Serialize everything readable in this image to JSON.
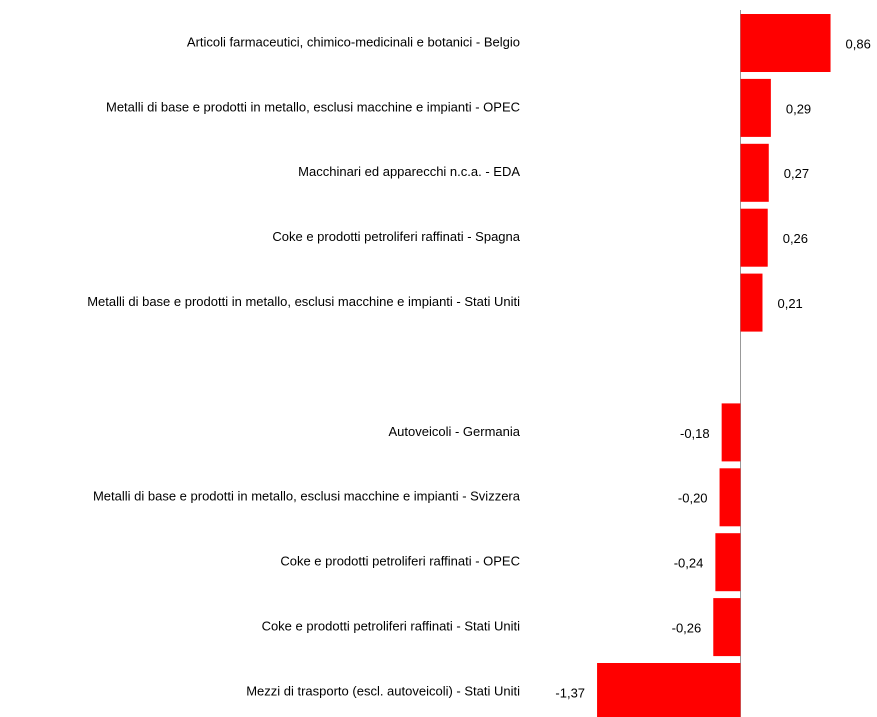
{
  "chart_data": {
    "type": "bar",
    "orientation": "horizontal",
    "color": "#ff0000",
    "categories": [
      "Articoli farmaceutici, chimico-medicinali e botanici - Belgio",
      "Metalli di base e prodotti in metallo, esclusi macchine e impianti - OPEC",
      "Macchinari ed apparecchi n.c.a. - EDA",
      "Coke e prodotti petroliferi raffinati - Spagna",
      "Metalli di base e prodotti in metallo, esclusi macchine e impianti - Stati Uniti",
      null,
      "Autoveicoli - Germania",
      "Metalli di base e prodotti in metallo, esclusi macchine e impianti - Svizzera",
      "Coke e prodotti petroliferi raffinati - OPEC",
      "Coke e prodotti petroliferi raffinati - Stati Uniti",
      "Mezzi di trasporto (escl. autoveicoli) - Stati Uniti"
    ],
    "values": [
      0.86,
      0.29,
      0.27,
      0.26,
      0.21,
      null,
      -0.18,
      -0.2,
      -0.24,
      -0.26,
      -1.37
    ],
    "value_labels": [
      "0,86",
      "0,29",
      "0,27",
      "0,26",
      "0,21",
      null,
      "-0,18",
      "-0,20",
      "-0,24",
      "-0,26",
      "-1,37"
    ]
  }
}
